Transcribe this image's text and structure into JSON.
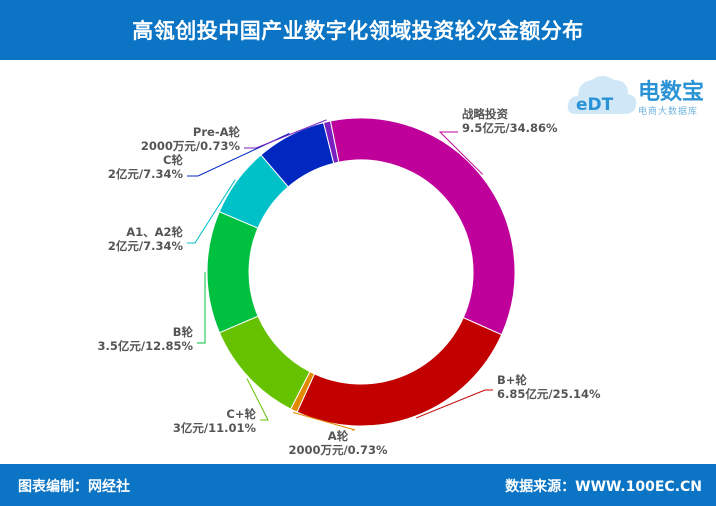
{
  "header": {
    "title": "高瓴创投中国产业数字化领域投资轮次金额分布"
  },
  "footer": {
    "left": "图表编制：网经社",
    "right": "数据来源：WWW.100EC.CN"
  },
  "logo": {
    "brand": "电数宝",
    "sub": "电商大数据库",
    "mark": "eDT"
  },
  "chart_data": {
    "type": "pie",
    "donut": true,
    "slices": [
      {
        "name": "战略投资",
        "value_label": "9.5亿元/34.86%",
        "value": 9.5,
        "percent": 34.86,
        "color": "#c0009a"
      },
      {
        "name": "B+轮",
        "value_label": "6.85亿元/25.14%",
        "value": 6.85,
        "percent": 25.14,
        "color": "#c20000"
      },
      {
        "name": "A轮",
        "value_label": "2000万元/0.73%",
        "value": 0.2,
        "percent": 0.73,
        "color": "#e08a00"
      },
      {
        "name": "C+轮",
        "value_label": "3亿元/11.01%",
        "value": 3,
        "percent": 11.01,
        "color": "#66c200"
      },
      {
        "name": "B轮",
        "value_label": "3.5亿元/12.85%",
        "value": 3.5,
        "percent": 12.85,
        "color": "#00c040"
      },
      {
        "name": "A1、A2轮",
        "value_label": "2亿元/7.34%",
        "value": 2,
        "percent": 7.34,
        "color": "#00c0c8"
      },
      {
        "name": "C轮",
        "value_label": "2亿元/7.34%",
        "value": 2,
        "percent": 7.34,
        "color": "#0028c0"
      },
      {
        "name": "Pre-A轮",
        "value_label": "2000万元/0.73%",
        "value": 0.2,
        "percent": 0.73,
        "color": "#7a1fc0"
      }
    ]
  }
}
